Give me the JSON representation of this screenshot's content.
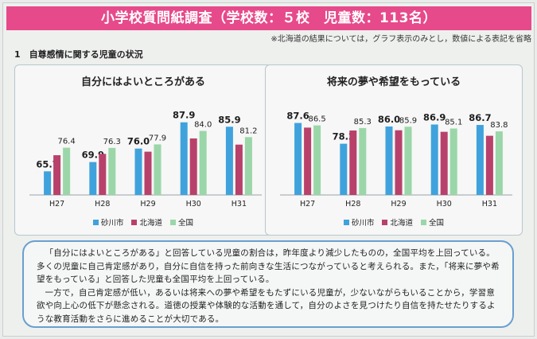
{
  "header": {
    "title": "小学校質問紙調査（学校数：５校　児童数：113名）",
    "note": "※北海道の結果については，グラフ表示のみとし，数値による表記を省略"
  },
  "section": {
    "heading": "1　自尊感情に関する児童の状況"
  },
  "colors": {
    "sunagawa": "#3fa2dc",
    "hokkaido": "#b8416b",
    "zenkoku": "#9bd6a9",
    "banner": "#e64a8a",
    "box_border": "#6a9fd0"
  },
  "legend": [
    "砂川市",
    "北海道",
    "全国"
  ],
  "chart_data": [
    {
      "type": "bar",
      "title": "自分にはよいところがある",
      "categories": [
        "H27",
        "H28",
        "H29",
        "H30",
        "H31"
      ],
      "series": [
        {
          "name": "砂川市",
          "values": [
            65.7,
            69.9,
            76.0,
            87.9,
            85.9
          ],
          "labels": [
            "65.7",
            "69.9",
            "76.0",
            "87.9",
            "85.9"
          ]
        },
        {
          "name": "北海道",
          "values": [
            73.0,
            73.6,
            74.6,
            80.6,
            77.8
          ],
          "labels": [
            "",
            "",
            "",
            "",
            ""
          ]
        },
        {
          "name": "全国",
          "values": [
            76.4,
            76.3,
            77.9,
            84.0,
            81.2
          ],
          "labels": [
            "76.4",
            "76.3",
            "77.9",
            "84.0",
            "81.2"
          ]
        }
      ],
      "ylim": [
        55,
        95
      ]
    },
    {
      "type": "bar",
      "title": "将来の夢や希望をもっている",
      "categories": [
        "H27",
        "H28",
        "H29",
        "H30",
        "H31"
      ],
      "series": [
        {
          "name": "砂川市",
          "values": [
            87.6,
            78.2,
            86.0,
            86.9,
            86.7
          ],
          "labels": [
            "87.6",
            "78.2",
            "86.0",
            "86.9",
            "86.7"
          ]
        },
        {
          "name": "北海道",
          "values": [
            85.5,
            84.2,
            84.3,
            83.6,
            81.8
          ],
          "labels": [
            "",
            "",
            "",
            "",
            ""
          ]
        },
        {
          "name": "全国",
          "values": [
            86.5,
            85.3,
            85.9,
            85.1,
            83.8
          ],
          "labels": [
            "86.5",
            "85.3",
            "85.9",
            "85.1",
            "83.8"
          ]
        }
      ],
      "ylim": [
        55,
        95
      ]
    }
  ],
  "comment": {
    "paragraph1": "「自分にはよいところがある」と回答している児童の割合は，昨年度より減少したものの，全国平均を上回っている。多くの児童に自己肯定感があり，自分に自信を持った前向きな生活につながっていると考えられる。また，「将来に夢や希望をもっている」と回答した児童も全国平均を上回っている。",
    "paragraph2": "一方で，自己肯定感が低い，あるいは将来への夢や希望をもたずにいる児童が，少ないながらもいることから，学習意欲や向上心の低下が懸念される。道徳の授業や体験的な活動を通して，自分のよさを見つけたり自信を持たせたりするような教育活動をさらに進めることが大切である。"
  }
}
